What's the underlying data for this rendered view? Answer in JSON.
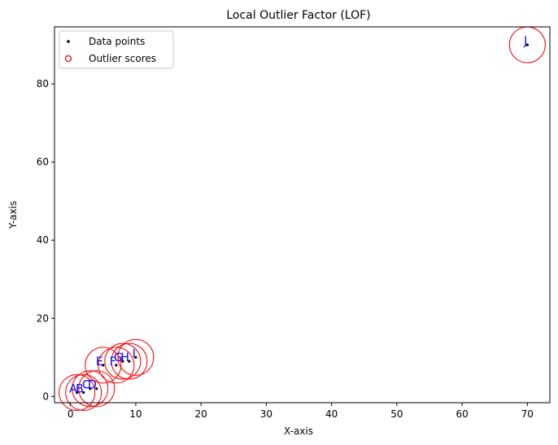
{
  "chart_data": {
    "type": "scatter",
    "title": "Local Outlier Factor (LOF)",
    "xlabel": "X-axis",
    "ylabel": "Y-axis",
    "xlim": [
      -2.45,
      73.45
    ],
    "ylim": [
      -1.6,
      94.6
    ],
    "xticks": [
      0,
      10,
      20,
      30,
      40,
      50,
      60,
      70
    ],
    "yticks": [
      0,
      20,
      40,
      60,
      80
    ],
    "grid": false,
    "legend_position": "top-left",
    "points": [
      {
        "label": "A",
        "x": 1,
        "y": 1,
        "score": 1.0
      },
      {
        "label": "B",
        "x": 2,
        "y": 1,
        "score": 1.0
      },
      {
        "label": "C",
        "x": 3,
        "y": 2,
        "score": 1.0
      },
      {
        "label": "D",
        "x": 4,
        "y": 2,
        "score": 1.0
      },
      {
        "label": "E",
        "x": 5,
        "y": 8,
        "score": 1.0
      },
      {
        "label": "F",
        "x": 7,
        "y": 8,
        "score": 1.0
      },
      {
        "label": "G",
        "x": 8,
        "y": 9,
        "score": 1.0
      },
      {
        "label": "H",
        "x": 9,
        "y": 9,
        "score": 1.0
      },
      {
        "label": "I",
        "x": 10,
        "y": 10,
        "score": 1.0
      },
      {
        "label": "J",
        "x": 70,
        "y": 90,
        "score": 1.0
      }
    ],
    "legend": [
      {
        "label": "Data points",
        "marker": "dot"
      },
      {
        "label": "Outlier scores",
        "marker": "circle"
      }
    ],
    "colors": {
      "points": "#000000",
      "outlier_circles": "#ff0000",
      "labels": "#0000ff",
      "axes": "#000000"
    }
  }
}
